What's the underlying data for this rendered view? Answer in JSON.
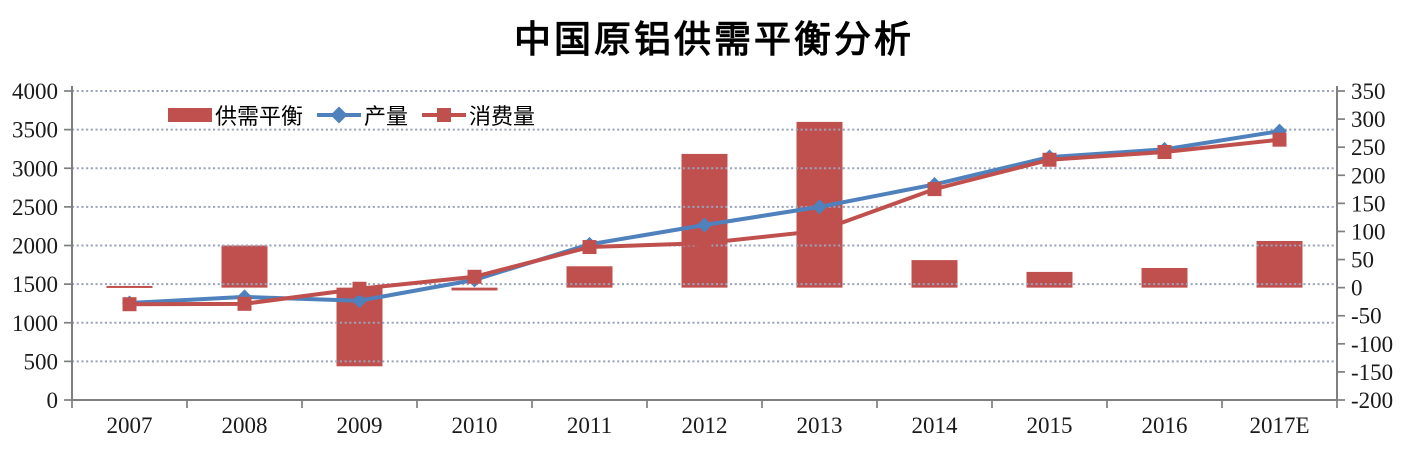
{
  "title": "中国原铝供需平衡分析",
  "colors": {
    "bar_red": "#C0504D",
    "line_blue": "#4F81BD",
    "line_red": "#C0504D",
    "gridline": "#99A3BD",
    "axis": "#7F7F7F",
    "label": "#1a1a1a"
  },
  "chart_data": {
    "type": "combo",
    "title": "中国原铝供需平衡分析",
    "categories": [
      "2007",
      "2008",
      "2009",
      "2010",
      "2011",
      "2012",
      "2013",
      "2014",
      "2015",
      "2016",
      "2017E"
    ],
    "series": [
      {
        "name": "供需平衡",
        "type": "bar",
        "axis": "right",
        "values": [
          3,
          75,
          -140,
          -5,
          38,
          238,
          295,
          49,
          28,
          35,
          83
        ]
      },
      {
        "name": "产量",
        "type": "line",
        "axis": "left",
        "marker": "diamond",
        "values": [
          1255,
          1335,
          1285,
          1555,
          2015,
          2265,
          2500,
          2790,
          3145,
          3245,
          3480
        ]
      },
      {
        "name": "消费量",
        "type": "line",
        "axis": "left",
        "marker": "square",
        "values": [
          1240,
          1245,
          1440,
          1595,
          1980,
          2030,
          2190,
          2730,
          3110,
          3210,
          3370
        ]
      }
    ],
    "left_axis": {
      "min": 0,
      "max": 4000,
      "step": 500
    },
    "right_axis": {
      "min": -200,
      "max": 350,
      "step": 50
    },
    "grid": "horizontal dotted",
    "legend_position": "top-left-inside"
  }
}
